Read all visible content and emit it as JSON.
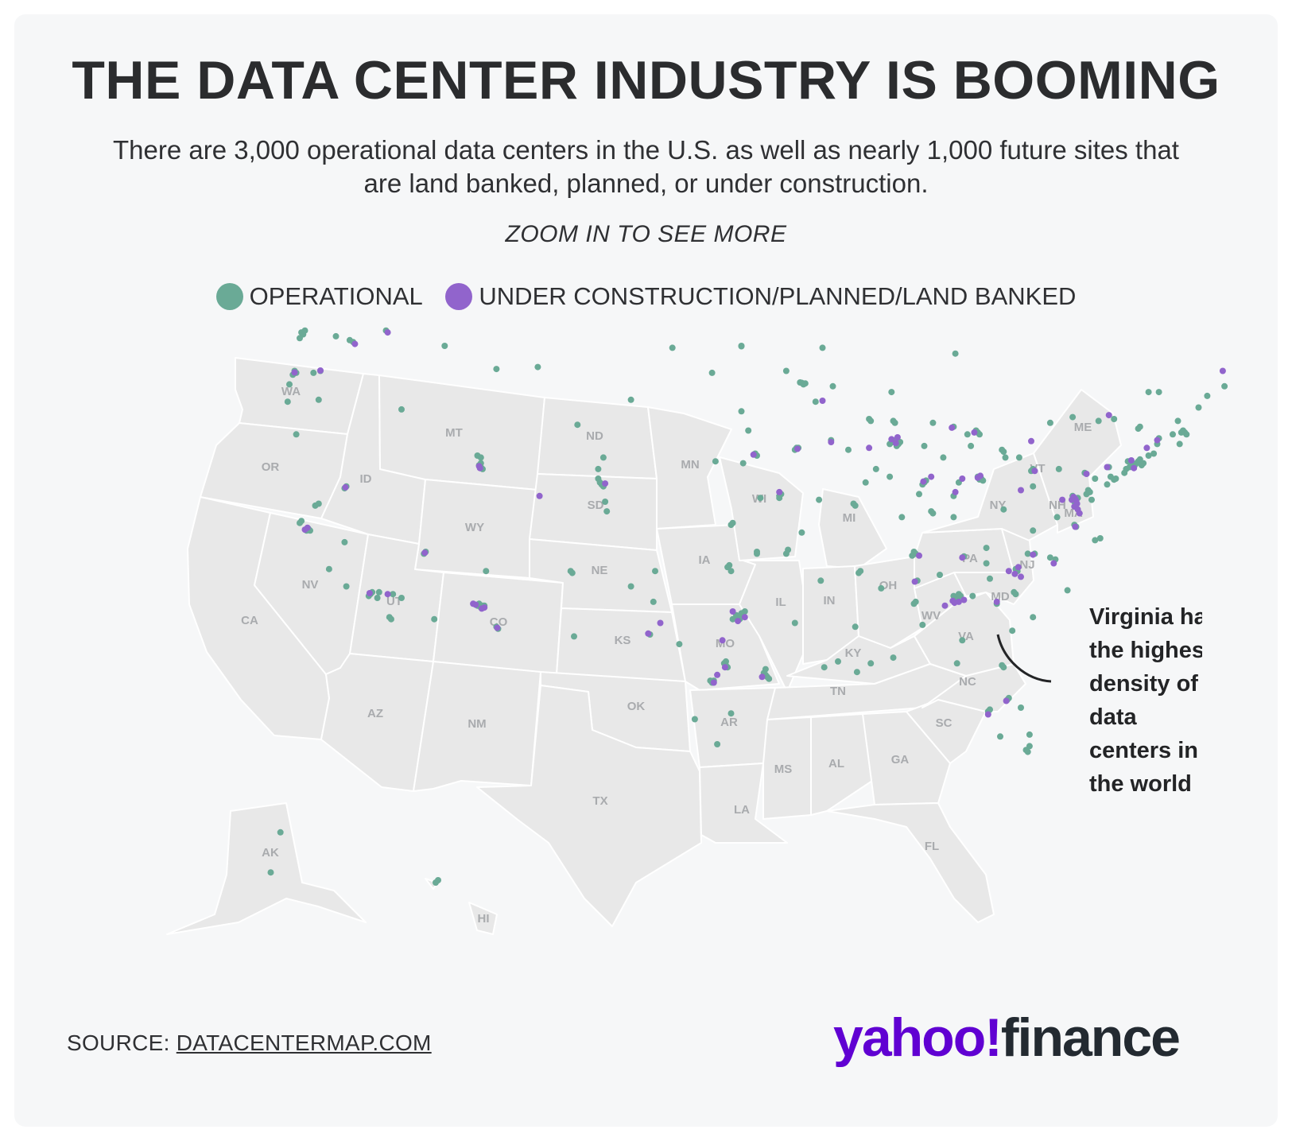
{
  "header": {
    "title": "THE DATA CENTER INDUSTRY IS BOOMING",
    "subtitle": "There are 3,000 operational data centers in the U.S. as well as nearly 1,000 future sites that are land banked, planned, or under construction.",
    "zoom_hint": "ZOOM IN TO SEE MORE"
  },
  "legend": {
    "operational": {
      "label": "OPERATIONAL",
      "color": "#6aaa96"
    },
    "planned": {
      "label": "UNDER CONSTRUCTION/PLANNED/LAND BANKED",
      "color": "#9164cc"
    }
  },
  "map": {
    "state_labels": [
      "WA",
      "OR",
      "CA",
      "NV",
      "ID",
      "MT",
      "WY",
      "UT",
      "AZ",
      "CO",
      "NM",
      "ND",
      "SD",
      "NE",
      "KS",
      "OK",
      "TX",
      "MN",
      "IA",
      "MO",
      "AR",
      "LA",
      "WI",
      "IL",
      "MI",
      "IN",
      "OH",
      "KY",
      "TN",
      "MS",
      "AL",
      "GA",
      "FL",
      "SC",
      "NC",
      "VA",
      "WV",
      "PA",
      "NY",
      "VT",
      "ME",
      "NH",
      "MA",
      "NJ",
      "MD",
      "AK",
      "HI"
    ],
    "points_operational": [
      [
        -122.3,
        47.6
      ],
      [
        -122.2,
        47.5
      ],
      [
        -122.4,
        47.3
      ],
      [
        -122.1,
        47.7
      ],
      [
        -119.5,
        47.2
      ],
      [
        -119.3,
        47.1
      ],
      [
        -117.4,
        47.7
      ],
      [
        -120.3,
        47.4
      ],
      [
        -122.6,
        45.5
      ],
      [
        -122.8,
        45.4
      ],
      [
        -122.7,
        45.6
      ],
      [
        -121.2,
        45.6
      ],
      [
        -123.0,
        44.9
      ],
      [
        -121.3,
        44.1
      ],
      [
        -122.6,
        42.3
      ],
      [
        -123.1,
        44.0
      ],
      [
        -121.6,
        45.5
      ],
      [
        -121.9,
        37.4
      ],
      [
        -122.0,
        37.3
      ],
      [
        -121.8,
        37.3
      ],
      [
        -122.3,
        37.8
      ],
      [
        -122.4,
        37.7
      ],
      [
        -121.5,
        38.6
      ],
      [
        -121.3,
        38.7
      ],
      [
        -119.8,
        36.7
      ],
      [
        -118.2,
        34.1
      ],
      [
        -118.3,
        34.0
      ],
      [
        -118.4,
        33.9
      ],
      [
        -117.9,
        33.8
      ],
      [
        -117.2,
        32.8
      ],
      [
        -117.1,
        32.7
      ],
      [
        -116.5,
        33.8
      ],
      [
        -119.7,
        34.4
      ],
      [
        -120.7,
        35.3
      ],
      [
        -117.0,
        34.0
      ],
      [
        -117.8,
        34.1
      ],
      [
        -119.8,
        39.5
      ],
      [
        -119.7,
        39.6
      ],
      [
        -115.2,
        36.1
      ],
      [
        -115.1,
        36.2
      ],
      [
        -116.5,
        43.6
      ],
      [
        -112.0,
        40.7
      ],
      [
        -111.9,
        40.8
      ],
      [
        -111.9,
        40.6
      ],
      [
        -111.8,
        40.5
      ],
      [
        -112.1,
        41.2
      ],
      [
        -111.9,
        41.1
      ],
      [
        -112.1,
        33.4
      ],
      [
        -112.0,
        33.5
      ],
      [
        -111.9,
        33.3
      ],
      [
        -111.8,
        33.4
      ],
      [
        -111.7,
        33.4
      ],
      [
        -110.9,
        32.2
      ],
      [
        -111.0,
        32.3
      ],
      [
        -111.6,
        35.2
      ],
      [
        -114.6,
        32.7
      ],
      [
        -104.9,
        39.7
      ],
      [
        -105.0,
        39.8
      ],
      [
        -104.8,
        39.6
      ],
      [
        -105.1,
        40.0
      ],
      [
        -104.7,
        38.8
      ],
      [
        -105.1,
        40.5
      ],
      [
        -104.6,
        38.3
      ],
      [
        -106.6,
        35.1
      ],
      [
        -106.7,
        35.2
      ],
      [
        -106.5,
        31.8
      ],
      [
        -103.2,
        34.4
      ],
      [
        -108.6,
        45.8
      ],
      [
        -111.0,
        45.7
      ],
      [
        -114.0,
        46.9
      ],
      [
        -104.8,
        41.1
      ],
      [
        -106.3,
        42.8
      ],
      [
        -96.8,
        46.9
      ],
      [
        -96.8,
        43.5
      ],
      [
        -98.5,
        45.5
      ],
      [
        -100.8,
        46.8
      ],
      [
        -103.2,
        44.1
      ],
      [
        -96.0,
        41.3
      ],
      [
        -95.9,
        41.2
      ],
      [
        -96.7,
        40.8
      ],
      [
        -98.3,
        40.9
      ],
      [
        -97.3,
        37.7
      ],
      [
        -97.4,
        37.6
      ],
      [
        -95.7,
        39.0
      ],
      [
        -94.6,
        39.1
      ],
      [
        -94.6,
        39.0
      ],
      [
        -94.5,
        39.2
      ],
      [
        -97.5,
        35.5
      ],
      [
        -97.6,
        35.4
      ],
      [
        -97.4,
        35.2
      ],
      [
        -95.9,
        36.2
      ],
      [
        -95.9,
        36.1
      ],
      [
        -96.8,
        32.8
      ],
      [
        -96.7,
        32.9
      ],
      [
        -96.9,
        32.7
      ],
      [
        -97.0,
        32.8
      ],
      [
        -97.3,
        32.7
      ],
      [
        -96.8,
        33.0
      ],
      [
        -96.6,
        33.1
      ],
      [
        -97.1,
        32.9
      ],
      [
        -95.4,
        29.8
      ],
      [
        -95.3,
        29.7
      ],
      [
        -95.5,
        29.9
      ],
      [
        -95.2,
        29.6
      ],
      [
        -95.4,
        30.1
      ],
      [
        -97.7,
        30.3
      ],
      [
        -97.8,
        30.4
      ],
      [
        -97.6,
        30.2
      ],
      [
        -97.7,
        30.5
      ],
      [
        -98.5,
        29.4
      ],
      [
        -98.6,
        29.5
      ],
      [
        -98.4,
        29.5
      ],
      [
        -101.8,
        35.2
      ],
      [
        -102.1,
        31.9
      ],
      [
        -101.9,
        33.6
      ],
      [
        -97.4,
        27.8
      ],
      [
        -98.2,
        26.2
      ],
      [
        -99.5,
        27.5
      ],
      [
        -100.4,
        31.4
      ],
      [
        -93.3,
        44.98
      ],
      [
        -93.2,
        44.9
      ],
      [
        -93.1,
        44.95
      ],
      [
        -93.4,
        45.0
      ],
      [
        -92.5,
        44.0
      ],
      [
        -94.2,
        45.6
      ],
      [
        -96.8,
        46.88
      ],
      [
        -92.1,
        46.8
      ],
      [
        -93.6,
        41.6
      ],
      [
        -93.7,
        41.5
      ],
      [
        -93.5,
        41.6
      ],
      [
        -91.6,
        42.0
      ],
      [
        -90.6,
        41.5
      ],
      [
        -96.4,
        42.5
      ],
      [
        -92.3,
        38.9
      ],
      [
        -90.2,
        38.6
      ],
      [
        -90.3,
        38.7
      ],
      [
        -93.3,
        37.2
      ],
      [
        -92.2,
        34.7
      ],
      [
        -94.2,
        36.1
      ],
      [
        -94.1,
        36.3
      ],
      [
        -89.4,
        43.1
      ],
      [
        -89.3,
        43.0
      ],
      [
        -88.0,
        43.0
      ],
      [
        -87.9,
        42.9
      ],
      [
        -88.1,
        44.5
      ],
      [
        -91.5,
        44.8
      ],
      [
        -87.6,
        41.9
      ],
      [
        -87.7,
        41.8
      ],
      [
        -87.9,
        42.0
      ],
      [
        -88.0,
        41.9
      ],
      [
        -88.2,
        41.8
      ],
      [
        -87.8,
        41.7
      ],
      [
        -89.6,
        39.8
      ],
      [
        -89.0,
        40.5
      ],
      [
        -88.2,
        40.1
      ],
      [
        -86.2,
        39.8
      ],
      [
        -86.1,
        39.9
      ],
      [
        -86.3,
        39.7
      ],
      [
        -85.1,
        41.1
      ],
      [
        -87.5,
        38.0
      ],
      [
        -86.5,
        39.2
      ],
      [
        -83.0,
        42.3
      ],
      [
        -83.1,
        42.4
      ],
      [
        -83.2,
        42.5
      ],
      [
        -84.5,
        42.7
      ],
      [
        -85.7,
        42.9
      ],
      [
        -83.7,
        42.3
      ],
      [
        -86.2,
        41.7
      ],
      [
        -84.4,
        46.5
      ],
      [
        -83.0,
        39.96
      ],
      [
        -82.9,
        40.0
      ],
      [
        -83.1,
        40.1
      ],
      [
        -82.8,
        39.9
      ],
      [
        -81.7,
        41.5
      ],
      [
        -81.6,
        41.4
      ],
      [
        -84.5,
        39.1
      ],
      [
        -84.2,
        39.8
      ],
      [
        -83.5,
        41.7
      ],
      [
        -81.5,
        41.1
      ],
      [
        -80.7,
        41.1
      ],
      [
        -85.8,
        38.3
      ],
      [
        -85.7,
        38.2
      ],
      [
        -84.5,
        38.0
      ],
      [
        -86.8,
        36.2
      ],
      [
        -86.7,
        36.1
      ],
      [
        -86.9,
        36.0
      ],
      [
        -90.0,
        35.1
      ],
      [
        -89.9,
        35.2
      ],
      [
        -85.3,
        35.0
      ],
      [
        -83.9,
        35.96
      ],
      [
        -82.6,
        36.4
      ],
      [
        -86.6,
        34.7
      ],
      [
        -86.8,
        33.5
      ],
      [
        -86.7,
        33.6
      ],
      [
        -86.3,
        32.4
      ],
      [
        -88.0,
        30.7
      ],
      [
        -90.2,
        32.3
      ],
      [
        -89.3,
        30.4
      ],
      [
        -88.7,
        34.3
      ],
      [
        -91.2,
        30.5
      ],
      [
        -90.1,
        29.95
      ],
      [
        -93.7,
        32.5
      ],
      [
        -92.0,
        30.2
      ],
      [
        -84.4,
        33.8
      ],
      [
        -84.3,
        33.7
      ],
      [
        -84.5,
        33.9
      ],
      [
        -84.2,
        34.0
      ],
      [
        -84.1,
        33.9
      ],
      [
        -83.4,
        33.9
      ],
      [
        -81.1,
        32.1
      ],
      [
        -84.0,
        31.6
      ],
      [
        -82.0,
        33.5
      ],
      [
        -81.4,
        28.5
      ],
      [
        -81.3,
        28.6
      ],
      [
        -80.2,
        25.8
      ],
      [
        -80.1,
        26.1
      ],
      [
        -80.3,
        25.9
      ],
      [
        -80.1,
        26.7
      ],
      [
        -82.5,
        27.9
      ],
      [
        -82.4,
        28.0
      ],
      [
        -81.7,
        30.3
      ],
      [
        -81.6,
        30.2
      ],
      [
        -84.3,
        30.4
      ],
      [
        -81.8,
        26.6
      ],
      [
        -80.6,
        28.1
      ],
      [
        -80.9,
        34.0
      ],
      [
        -81.0,
        34.1
      ],
      [
        -82.4,
        34.8
      ],
      [
        -79.9,
        32.8
      ],
      [
        -80.8,
        35.2
      ],
      [
        -80.9,
        35.3
      ],
      [
        -78.6,
        35.8
      ],
      [
        -78.9,
        35.9
      ],
      [
        -79.8,
        36.1
      ],
      [
        -80.2,
        36.1
      ],
      [
        -82.6,
        35.6
      ],
      [
        -77.9,
        34.2
      ],
      [
        -77.4,
        37.5
      ],
      [
        -77.5,
        37.6
      ],
      [
        -76.3,
        36.8
      ],
      [
        -76.0,
        36.9
      ],
      [
        -79.9,
        37.3
      ],
      [
        -78.5,
        38.0
      ],
      [
        -77.5,
        39.0
      ],
      [
        -77.4,
        38.9
      ],
      [
        -77.5,
        38.8
      ],
      [
        -77.3,
        39.0
      ],
      [
        -77.6,
        39.1
      ],
      [
        -81.6,
        38.4
      ],
      [
        -79.9,
        39.6
      ],
      [
        -80.0,
        40.4
      ],
      [
        -79.9,
        40.5
      ],
      [
        -75.2,
        39.95
      ],
      [
        -75.1,
        40.0
      ],
      [
        -75.4,
        40.1
      ],
      [
        -76.9,
        40.3
      ],
      [
        -75.5,
        40.6
      ],
      [
        -78.4,
        40.5
      ],
      [
        -76.3,
        40.0
      ],
      [
        -74.0,
        40.7
      ],
      [
        -73.9,
        40.8
      ],
      [
        -74.1,
        40.7
      ],
      [
        -74.2,
        40.8
      ],
      [
        -74.3,
        40.6
      ],
      [
        -74.5,
        40.5
      ],
      [
        -74.6,
        40.3
      ],
      [
        -74.4,
        40.9
      ],
      [
        -73.8,
        40.9
      ],
      [
        -73.7,
        41.0
      ],
      [
        -73.6,
        40.7
      ],
      [
        -73.5,
        40.8
      ],
      [
        -73.8,
        42.6
      ],
      [
        -73.7,
        42.7
      ],
      [
        -76.1,
        43.0
      ],
      [
        -77.6,
        43.2
      ],
      [
        -78.9,
        42.9
      ],
      [
        -75.2,
        43.1
      ],
      [
        -71.1,
        42.4
      ],
      [
        -71.0,
        42.3
      ],
      [
        -71.2,
        42.5
      ],
      [
        -71.3,
        42.4
      ],
      [
        -71.8,
        42.3
      ],
      [
        -72.6,
        42.1
      ],
      [
        -71.4,
        41.8
      ],
      [
        -72.7,
        41.8
      ],
      [
        -72.9,
        41.3
      ],
      [
        -73.2,
        41.2
      ],
      [
        -71.5,
        43.0
      ],
      [
        -72.6,
        44.5
      ],
      [
        -73.2,
        44.5
      ],
      [
        -70.3,
        43.7
      ],
      [
        -69.8,
        44.3
      ],
      [
        -68.8,
        44.8
      ],
      [
        -76.6,
        39.3
      ],
      [
        -76.7,
        39.4
      ],
      [
        -76.8,
        39.2
      ],
      [
        -75.6,
        39.7
      ],
      [
        -76.5,
        38.9
      ],
      [
        -149.9,
        61.2
      ],
      [
        -147.7,
        64.8
      ],
      [
        -157.9,
        21.3
      ],
      [
        -157.8,
        21.4
      ]
    ],
    "points_planned": [
      [
        -122.7,
        45.52
      ],
      [
        -121.2,
        45.62
      ],
      [
        -119.2,
        47.0
      ],
      [
        -117.3,
        47.6
      ],
      [
        -122.1,
        37.35
      ],
      [
        -121.95,
        37.45
      ],
      [
        -118.35,
        34.05
      ],
      [
        -117.3,
        34.0
      ],
      [
        -119.75,
        39.55
      ],
      [
        -115.15,
        36.15
      ],
      [
        -112.0,
        40.65
      ],
      [
        -111.95,
        40.55
      ],
      [
        -112.2,
        33.45
      ],
      [
        -112.35,
        33.5
      ],
      [
        -111.85,
        33.25
      ],
      [
        -111.7,
        33.3
      ],
      [
        -110.95,
        32.25
      ],
      [
        -104.7,
        39.75
      ],
      [
        -108.5,
        39.1
      ],
      [
        -97.0,
        32.6
      ],
      [
        -96.6,
        32.8
      ],
      [
        -97.3,
        33.1
      ],
      [
        -97.75,
        30.2
      ],
      [
        -98.2,
        29.8
      ],
      [
        -98.4,
        29.4
      ],
      [
        -95.6,
        29.7
      ],
      [
        -97.9,
        31.6
      ],
      [
        -102.2,
        31.95
      ],
      [
        -101.5,
        32.5
      ],
      [
        -93.55,
        41.55
      ],
      [
        -91.6,
        41.9
      ],
      [
        -96.1,
        41.25
      ],
      [
        -94.6,
        39.3
      ],
      [
        -92.1,
        44.05
      ],
      [
        -88.1,
        42.05
      ],
      [
        -87.85,
        41.85
      ],
      [
        -87.75,
        42.15
      ],
      [
        -89.4,
        41.6
      ],
      [
        -86.25,
        39.85
      ],
      [
        -85.8,
        40.1
      ],
      [
        -84.0,
        40.0
      ],
      [
        -83.1,
        40.05
      ],
      [
        -82.95,
        40.15
      ],
      [
        -84.4,
        39.3
      ],
      [
        -80.6,
        39.4
      ],
      [
        -79.8,
        40.4
      ],
      [
        -76.8,
        40.25
      ],
      [
        -75.6,
        40.6
      ],
      [
        -77.55,
        39.05
      ],
      [
        -77.45,
        38.95
      ],
      [
        -77.4,
        38.85
      ],
      [
        -77.65,
        38.9
      ],
      [
        -77.35,
        38.7
      ],
      [
        -77.5,
        38.55
      ],
      [
        -77.3,
        38.4
      ],
      [
        -77.2,
        38.2
      ],
      [
        -77.45,
        37.5
      ],
      [
        -78.2,
        38.9
      ],
      [
        -84.2,
        33.6
      ],
      [
        -84.45,
        33.55
      ],
      [
        -84.55,
        33.65
      ],
      [
        -83.9,
        33.7
      ],
      [
        -85.0,
        33.4
      ],
      [
        -82.0,
        33.6
      ],
      [
        -80.95,
        35.05
      ],
      [
        -80.75,
        35.4
      ],
      [
        -80.6,
        34.9
      ],
      [
        -81.3,
        35.2
      ],
      [
        -78.7,
        35.6
      ],
      [
        -84.0,
        35.9
      ],
      [
        -86.75,
        34.65
      ],
      [
        -86.5,
        36.0
      ],
      [
        -82.5,
        27.75
      ],
      [
        -81.45,
        28.45
      ],
      [
        -79.9,
        36.05
      ],
      [
        -74.05,
        40.55
      ],
      [
        -74.2,
        40.95
      ],
      [
        -73.3,
        41.6
      ],
      [
        -72.7,
        42.0
      ],
      [
        -75.5,
        43.3
      ],
      [
        -80.0,
        41.95
      ],
      [
        -68.9,
        45.6
      ],
      [
        -83.3,
        42.4
      ],
      [
        -84.6,
        42.65
      ]
    ]
  },
  "annotation": {
    "lines": [
      "Virginia has",
      "the highest",
      "density of",
      "data",
      "centers in",
      "the world"
    ]
  },
  "footer": {
    "source_prefix": "SOURCE: ",
    "source_link": "DATACENTERMAP.COM",
    "logo_yahoo": "yahoo",
    "logo_bang": "!",
    "logo_finance": "finance"
  }
}
